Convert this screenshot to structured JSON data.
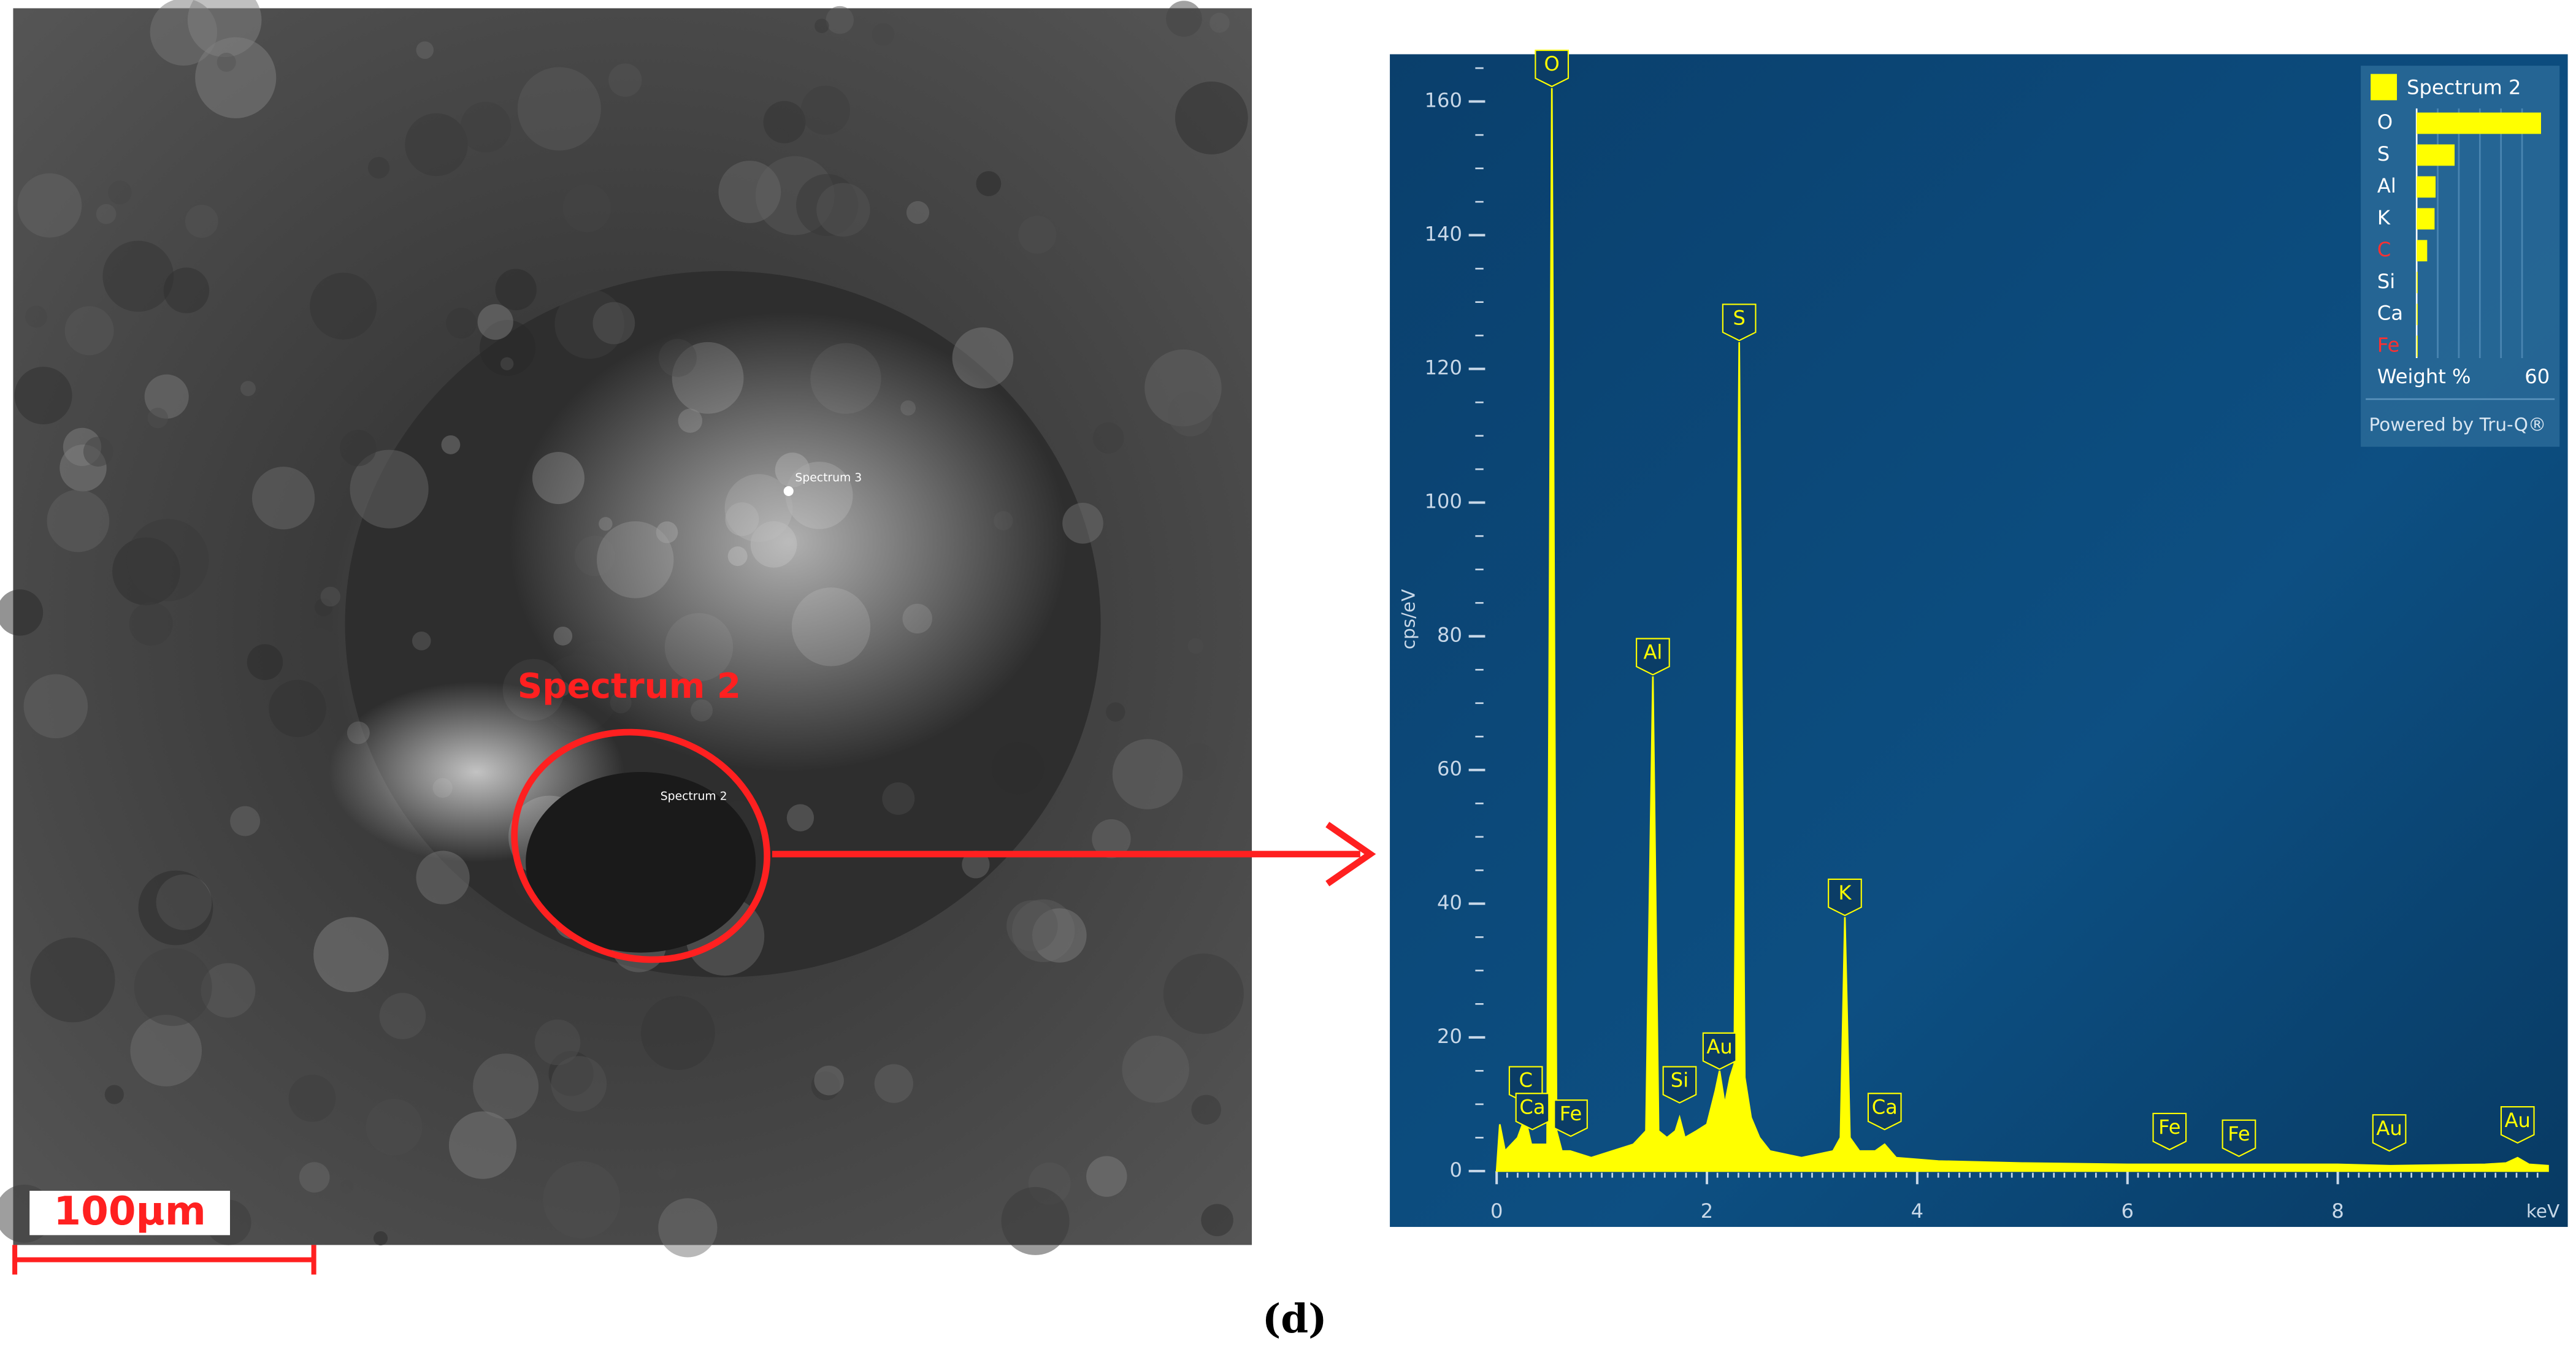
{
  "image": {
    "labels": [
      "Spectrum 3",
      "Spectrum 2"
    ],
    "annotation": "Spectrum 2",
    "scale_bar": "100µm"
  },
  "caption": "(d)",
  "chart_data": {
    "type": "area",
    "y_label": "cps/eV",
    "x_label": "keV",
    "background": "#0b4a7a",
    "x": [
      0,
      0.03,
      0.08,
      0.2,
      0.27,
      0.33,
      0.4,
      0.48,
      0.525,
      0.57,
      0.62,
      0.7,
      0.9,
      1.1,
      1.3,
      1.42,
      1.486,
      1.54,
      1.62,
      1.7,
      1.74,
      1.79,
      1.9,
      2.0,
      2.08,
      2.12,
      2.17,
      2.22,
      2.26,
      2.307,
      2.36,
      2.42,
      2.5,
      2.6,
      2.9,
      3.2,
      3.27,
      3.312,
      3.36,
      3.45,
      3.6,
      3.69,
      3.8,
      4.2,
      5.0,
      6.0,
      6.4,
      7.0,
      8.0,
      8.5,
      9.4,
      9.6,
      9.71,
      9.82,
      10
    ],
    "series": [
      {
        "name": "Spectrum 2",
        "color": "#ffff00",
        "values": [
          0,
          7,
          3,
          5,
          8,
          4,
          4,
          4,
          162,
          6,
          3,
          3,
          2,
          3,
          4,
          6,
          74,
          6,
          5,
          6,
          8,
          5,
          6,
          7,
          12,
          15,
          10,
          14,
          16,
          124,
          14,
          8,
          5,
          3,
          2,
          3,
          5,
          38,
          5,
          3,
          3,
          4,
          2,
          1.5,
          1.2,
          1,
          1,
          1,
          1,
          0.8,
          1,
          1.2,
          2,
          1,
          0.8
        ]
      }
    ],
    "xlim": [
      0,
      10
    ],
    "ylim": [
      0,
      165
    ],
    "xticks": [
      0,
      2,
      4,
      6,
      8
    ],
    "yticks": [
      0,
      20,
      40,
      60,
      80,
      100,
      120,
      140,
      160
    ],
    "peaks": [
      {
        "label": "C",
        "x": 0.277
      },
      {
        "label": "Ca",
        "x": 0.34
      },
      {
        "label": "O",
        "x": 0.525
      },
      {
        "label": "Fe",
        "x": 0.705
      },
      {
        "label": "Al",
        "x": 1.486
      },
      {
        "label": "Si",
        "x": 1.74
      },
      {
        "label": "Au",
        "x": 2.12
      },
      {
        "label": "S",
        "x": 2.307
      },
      {
        "label": "K",
        "x": 3.312
      },
      {
        "label": "Ca",
        "x": 3.69
      },
      {
        "label": "Fe",
        "x": 6.4
      },
      {
        "label": "Fe",
        "x": 7.06
      },
      {
        "label": "Au",
        "x": 8.49
      },
      {
        "label": "Au",
        "x": 9.71
      }
    ],
    "inset": {
      "title": "Weight %",
      "elements": [
        "O",
        "S",
        "Al",
        "K",
        "C",
        "Si",
        "Ca",
        "Fe"
      ],
      "values": [
        59,
        18,
        9,
        8.5,
        5,
        0.5,
        0.5,
        0.5
      ],
      "label_colors": [
        "#ffffff",
        "#ffffff",
        "#ffffff",
        "#ffffff",
        "#ff3030",
        "#ffffff",
        "#ffffff",
        "#ff3030"
      ],
      "xlim": [
        0,
        60
      ],
      "xticks": [
        60
      ],
      "footer": "Powered by Tru-Q®"
    }
  }
}
